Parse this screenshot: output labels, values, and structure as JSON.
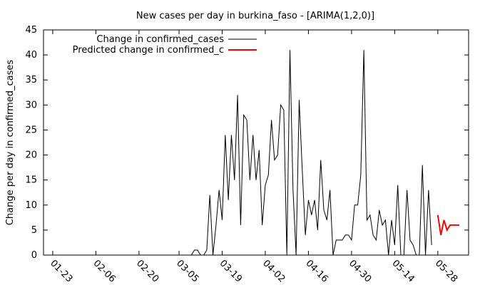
{
  "chart_data": {
    "type": "line",
    "title": "New cases per day in burkina_faso -  [ARIMA(1,2,0)]",
    "xlabel": "",
    "ylabel": "Change per day in confirmed_cases",
    "ylim": [
      0,
      45
    ],
    "yticks": [
      0,
      5,
      10,
      15,
      20,
      25,
      30,
      35,
      40,
      45
    ],
    "x_ticks": [
      {
        "label": "01-23",
        "day": 0
      },
      {
        "label": "02-06",
        "day": 14
      },
      {
        "label": "02-20",
        "day": 28
      },
      {
        "label": "03-05",
        "day": 41
      },
      {
        "label": "03-19",
        "day": 55
      },
      {
        "label": "04-02",
        "day": 69
      },
      {
        "label": "04-16",
        "day": 83
      },
      {
        "label": "04-30",
        "day": 97
      },
      {
        "label": "05-14",
        "day": 111
      },
      {
        "label": "05-28",
        "day": 125
      }
    ],
    "xlim": [
      -3,
      135
    ],
    "legend_position": "top-left",
    "grid": false,
    "series": [
      {
        "name": "Change in confirmed_cases",
        "color": "#000000",
        "start_day": 0,
        "values": [
          0,
          0,
          0,
          0,
          0,
          0,
          0,
          0,
          0,
          0,
          0,
          0,
          0,
          0,
          0,
          0,
          0,
          0,
          0,
          0,
          0,
          0,
          0,
          0,
          0,
          0,
          0,
          0,
          0,
          0,
          0,
          0,
          0,
          0,
          0,
          0,
          0,
          0,
          0,
          0,
          0,
          0,
          0,
          0,
          0,
          0,
          1,
          1,
          0,
          0,
          1,
          12,
          0,
          6,
          13,
          7,
          24,
          11,
          24,
          15,
          32,
          6,
          28,
          27,
          15,
          24,
          15,
          21,
          6,
          14,
          16,
          27,
          19,
          20,
          30,
          29,
          0,
          41,
          13,
          0,
          31,
          17,
          4,
          11,
          8,
          11,
          5,
          19,
          9,
          7,
          13,
          0,
          3,
          3,
          3,
          4,
          4,
          3,
          10,
          10,
          16,
          41,
          7,
          8,
          4,
          3,
          9,
          6,
          7,
          0,
          7,
          2,
          14,
          0,
          0,
          13,
          3,
          2,
          0,
          0,
          18,
          0,
          13,
          2
        ]
      },
      {
        "name": "Predicted change in confirmed_c",
        "color": "#ff0000",
        "start_day": 125,
        "values": [
          8,
          4,
          7,
          5,
          6,
          6,
          6,
          6
        ]
      }
    ]
  }
}
